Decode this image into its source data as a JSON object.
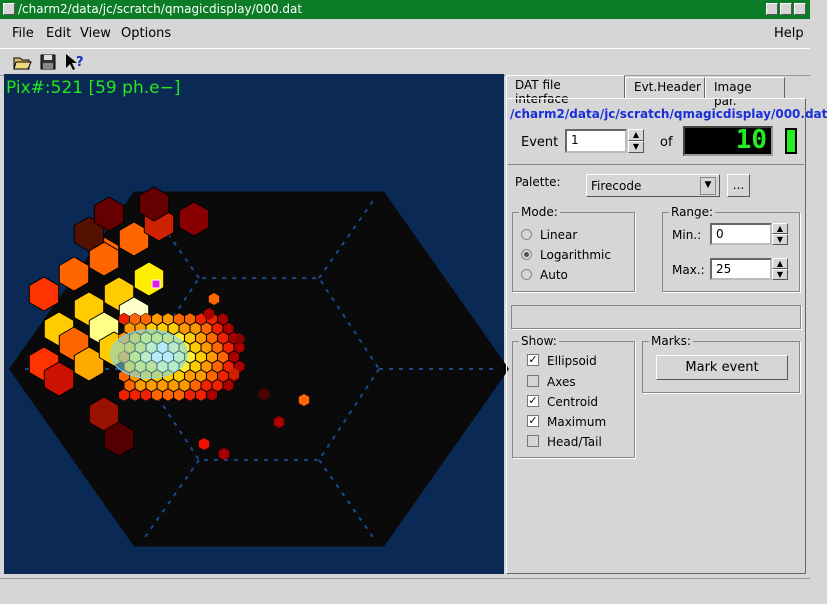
{
  "window": {
    "title": "/charm2/data/jc/scratch/qmagicdisplay/000.dat"
  },
  "menu": {
    "file": "File",
    "edit": "Edit",
    "view": "View",
    "options": "Options",
    "help": "Help"
  },
  "toolbar": {
    "open_icon": "folder-open-icon",
    "save_icon": "floppy-save-icon",
    "help_icon": "whats-this-icon"
  },
  "display": {
    "pixel_info": "Pix#:521 [59 ph.e−]",
    "colors": {
      "background": "#0a2a55",
      "camera": "#0a0a0a",
      "grid": "#1a4a8a",
      "ellipse": "#7fd8f0",
      "selected": "#e020e0"
    }
  },
  "tabs": [
    {
      "label": "DAT file interface",
      "active": true
    },
    {
      "label": "Evt.Header",
      "active": false
    },
    {
      "label": "Image par.",
      "active": false
    }
  ],
  "dat": {
    "path": "/charm2/data/jc/scratch/qmagicdisplay/000.dat",
    "event_label": "Event",
    "event_value": "1",
    "of_label": "of",
    "total_events": "10"
  },
  "palette": {
    "label": "Palette:",
    "value": "Firecode",
    "browse": "..."
  },
  "mode": {
    "label": "Mode:",
    "options": [
      {
        "label": "Linear",
        "selected": false
      },
      {
        "label": "Logarithmic",
        "selected": true
      },
      {
        "label": "Auto",
        "selected": false
      }
    ]
  },
  "range": {
    "label": "Range:",
    "min_label": "Min.:",
    "min_value": "0",
    "max_label": "Max.:",
    "max_value": "25"
  },
  "show": {
    "label": "Show:",
    "items": [
      {
        "label": "Ellipsoid",
        "checked": true
      },
      {
        "label": "Axes",
        "checked": false
      },
      {
        "label": "Centroid",
        "checked": true
      },
      {
        "label": "Maximum",
        "checked": true
      },
      {
        "label": "Head/Tail",
        "checked": false
      }
    ]
  },
  "marks": {
    "label": "Marks:",
    "button": "Mark event"
  }
}
